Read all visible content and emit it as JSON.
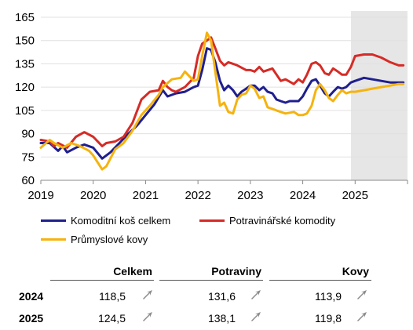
{
  "chart_data": {
    "type": "line",
    "x_ticks": [
      "2019",
      "2020",
      "2021",
      "2022",
      "2023",
      "2024",
      "2025"
    ],
    "y_ticks": [
      "165",
      "150",
      "135",
      "120",
      "105",
      "90",
      "75",
      "60"
    ],
    "ylim": [
      60,
      165
    ],
    "xlim": [
      2019.0,
      2026.0
    ],
    "forecast_start": 2024.92,
    "series": [
      {
        "name": "Komoditní koš celkem",
        "color": "#1f1f8f",
        "x": [
          2019.0,
          2019.17,
          2019.33,
          2019.42,
          2019.5,
          2019.67,
          2019.83,
          2020.0,
          2020.17,
          2020.25,
          2020.33,
          2020.5,
          2020.67,
          2020.83,
          2021.0,
          2021.17,
          2021.33,
          2021.42,
          2021.58,
          2021.75,
          2021.92,
          2022.0,
          2022.08,
          2022.17,
          2022.25,
          2022.33,
          2022.42,
          2022.5,
          2022.58,
          2022.67,
          2022.75,
          2022.83,
          2022.92,
          2023.0,
          2023.08,
          2023.17,
          2023.25,
          2023.33,
          2023.42,
          2023.5,
          2023.58,
          2023.67,
          2023.75,
          2023.83,
          2023.92,
          2024.0,
          2024.08,
          2024.17,
          2024.25,
          2024.33,
          2024.42,
          2024.5,
          2024.58,
          2024.67,
          2024.75,
          2024.83,
          2024.92,
          2025.0,
          2025.17,
          2025.33,
          2025.5,
          2025.67,
          2025.83,
          2025.92
        ],
        "values": [
          84,
          84,
          79,
          82,
          78,
          81,
          83,
          81,
          74,
          76,
          78,
          84,
          90,
          95,
          102,
          109,
          118,
          114,
          116,
          117,
          120,
          121,
          131,
          145,
          144,
          136,
          124,
          118,
          121,
          118,
          114,
          117,
          119,
          121,
          121,
          118,
          120,
          117,
          116,
          112,
          111,
          110,
          111,
          111,
          111,
          114,
          119,
          124,
          125,
          121,
          116,
          114,
          117,
          120,
          119,
          120,
          123,
          124,
          126,
          125,
          124,
          123,
          123,
          123
        ]
      },
      {
        "name": "Potravinářské komodity",
        "color": "#d62b26",
        "x": [
          2019.0,
          2019.17,
          2019.25,
          2019.33,
          2019.5,
          2019.67,
          2019.83,
          2020.0,
          2020.17,
          2020.25,
          2020.42,
          2020.58,
          2020.75,
          2020.92,
          2021.08,
          2021.25,
          2021.33,
          2021.42,
          2021.5,
          2021.58,
          2021.75,
          2021.92,
          2022.0,
          2022.08,
          2022.17,
          2022.25,
          2022.33,
          2022.42,
          2022.5,
          2022.58,
          2022.67,
          2022.75,
          2022.92,
          2023.0,
          2023.08,
          2023.17,
          2023.25,
          2023.33,
          2023.42,
          2023.58,
          2023.67,
          2023.83,
          2023.92,
          2024.0,
          2024.08,
          2024.17,
          2024.25,
          2024.33,
          2024.42,
          2024.5,
          2024.58,
          2024.67,
          2024.75,
          2024.83,
          2024.92,
          2025.0,
          2025.17,
          2025.33,
          2025.5,
          2025.67,
          2025.83,
          2025.92
        ],
        "values": [
          86,
          85,
          82,
          84,
          81,
          88,
          91,
          88,
          82,
          84,
          85,
          88,
          97,
          112,
          117,
          118,
          124,
          120,
          118,
          117,
          120,
          126,
          140,
          148,
          150,
          152,
          145,
          137,
          134,
          136,
          135,
          134,
          131,
          131,
          130,
          133,
          130,
          131,
          132,
          124,
          125,
          122,
          125,
          123,
          128,
          135,
          136,
          134,
          129,
          128,
          132,
          130,
          128,
          128,
          133,
          140,
          141,
          141,
          139,
          136,
          134,
          134
        ]
      },
      {
        "name": "Průmyslové kovy",
        "color": "#f5b30f",
        "x": [
          2019.0,
          2019.17,
          2019.25,
          2019.42,
          2019.58,
          2019.75,
          2019.92,
          2020.0,
          2020.17,
          2020.25,
          2020.42,
          2020.58,
          2020.75,
          2020.92,
          2021.08,
          2021.25,
          2021.33,
          2021.5,
          2021.67,
          2021.75,
          2021.92,
          2022.0,
          2022.08,
          2022.17,
          2022.25,
          2022.33,
          2022.42,
          2022.5,
          2022.58,
          2022.67,
          2022.75,
          2022.83,
          2022.92,
          2023.0,
          2023.08,
          2023.17,
          2023.25,
          2023.33,
          2023.42,
          2023.5,
          2023.58,
          2023.67,
          2023.83,
          2023.92,
          2024.0,
          2024.08,
          2024.17,
          2024.25,
          2024.33,
          2024.42,
          2024.5,
          2024.58,
          2024.67,
          2024.75,
          2024.83,
          2024.92,
          2025.0,
          2025.17,
          2025.33,
          2025.5,
          2025.67,
          2025.83,
          2025.92
        ],
        "values": [
          81,
          86,
          84,
          81,
          84,
          82,
          79,
          76,
          67,
          69,
          80,
          84,
          92,
          102,
          108,
          115,
          120,
          125,
          126,
          130,
          124,
          125,
          140,
          155,
          150,
          130,
          108,
          110,
          104,
          103,
          112,
          115,
          116,
          121,
          119,
          113,
          114,
          107,
          106,
          105,
          104,
          103,
          104,
          102,
          102,
          103,
          108,
          118,
          122,
          118,
          113,
          111,
          115,
          118,
          116,
          117,
          117,
          118,
          119,
          120,
          121,
          122,
          122
        ]
      }
    ]
  },
  "summary": {
    "columns": [
      "Celkem",
      "Potraviny",
      "Kovy"
    ],
    "rows": [
      {
        "year": "2024",
        "values": [
          "118,5",
          "131,6",
          "113,9"
        ]
      },
      {
        "year": "2025",
        "values": [
          "124,5",
          "138,1",
          "119,8"
        ]
      }
    ],
    "arrow_color": "#8a8a8a"
  }
}
